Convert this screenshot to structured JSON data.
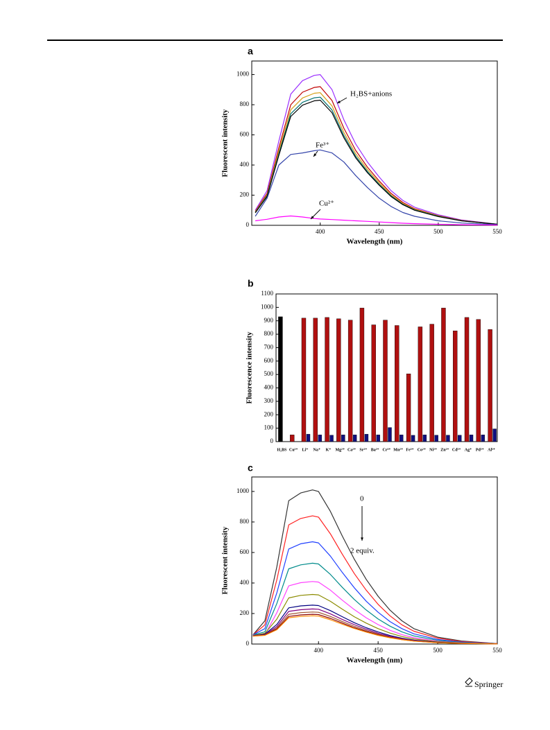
{
  "footer": {
    "publisher": "Springer"
  },
  "chart_data": [
    {
      "type": "line",
      "panel_label": "a",
      "xlabel": "Wavelength (nm)",
      "ylabel": "Fluorescent intensity",
      "xlim": [
        342,
        550
      ],
      "ylim": [
        0,
        1090
      ],
      "xticks": [
        400,
        450,
        500,
        550
      ],
      "yticks": [
        0,
        200,
        400,
        600,
        800,
        1000
      ],
      "x": [
        345,
        355,
        365,
        375,
        385,
        395,
        400,
        410,
        420,
        430,
        440,
        450,
        460,
        470,
        480,
        500,
        520,
        550
      ],
      "annotations": [
        "H₂BS+anions",
        "Fe³⁺",
        "Cu²⁺"
      ],
      "series": [
        {
          "color": "#9b30ff",
          "values": [
            100,
            230,
            560,
            870,
            960,
            995,
            1000,
            900,
            700,
            540,
            420,
            320,
            230,
            165,
            120,
            70,
            35,
            8
          ]
        },
        {
          "color": "#c00000",
          "values": [
            92,
            212,
            515,
            800,
            883,
            915,
            920,
            828,
            644,
            497,
            386,
            294,
            212,
            152,
            110,
            64,
            32,
            7
          ]
        },
        {
          "color": "#d4a017",
          "values": [
            88,
            202,
            493,
            766,
            845,
            876,
            880,
            792,
            616,
            475,
            370,
            282,
            202,
            145,
            106,
            62,
            31,
            7
          ]
        },
        {
          "color": "#007070",
          "values": [
            85,
            196,
            476,
            740,
            816,
            846,
            850,
            765,
            595,
            459,
            357,
            272,
            196,
            140,
            102,
            60,
            30,
            7
          ]
        },
        {
          "color": "#000000",
          "values": [
            83,
            191,
            465,
            722,
            797,
            826,
            830,
            747,
            581,
            448,
            349,
            266,
            191,
            137,
            100,
            58,
            29,
            7
          ]
        },
        {
          "color": "#3344aa",
          "values": [
            60,
            180,
            400,
            470,
            480,
            495,
            500,
            480,
            420,
            330,
            250,
            180,
            125,
            85,
            60,
            30,
            15,
            4
          ]
        },
        {
          "color": "#ff00ff",
          "values": [
            30,
            40,
            55,
            62,
            55,
            45,
            42,
            38,
            34,
            30,
            26,
            22,
            18,
            14,
            11,
            7,
            4,
            2
          ]
        }
      ]
    },
    {
      "type": "bar",
      "panel_label": "b",
      "ylabel": "Fluorescence intensity",
      "ylim": [
        0,
        1100
      ],
      "yticks": [
        0,
        100,
        200,
        300,
        400,
        500,
        600,
        700,
        800,
        900,
        1000,
        1100
      ],
      "categories": [
        "H₂BS",
        "Cu²⁺",
        "Li⁺",
        "Na⁺",
        "K⁺",
        "Mg²⁺",
        "Ca²⁺",
        "Sr²⁺",
        "Ba²⁺",
        "Cr³⁺",
        "Mn²⁺",
        "Fe³⁺",
        "Co²⁺",
        "Ni²⁺",
        "Zn²⁺",
        "Cd²⁺",
        "Ag⁺",
        "Pd²⁺",
        "Al³⁺"
      ],
      "first_bar_color": "#000000",
      "series": [
        {
          "color": "#b01010",
          "values": [
            930,
            50,
            920,
            920,
            925,
            915,
            905,
            995,
            870,
            905,
            865,
            505,
            855,
            875,
            995,
            825,
            925,
            910,
            835
          ]
        },
        {
          "color": "#101080",
          "values": [
            null,
            null,
            55,
            50,
            48,
            50,
            50,
            55,
            50,
            105,
            50,
            47,
            50,
            48,
            48,
            48,
            50,
            50,
            95
          ]
        }
      ]
    },
    {
      "type": "line",
      "panel_label": "c",
      "xlabel": "Wavelength (nm)",
      "ylabel": "Fluorescent intensity",
      "xlim": [
        344,
        550
      ],
      "ylim": [
        0,
        1095
      ],
      "xticks": [
        400,
        450,
        500,
        550
      ],
      "yticks": [
        0,
        200,
        400,
        600,
        800,
        1000
      ],
      "x": [
        345,
        355,
        365,
        375,
        385,
        395,
        400,
        410,
        420,
        430,
        440,
        450,
        460,
        470,
        480,
        500,
        520,
        550
      ],
      "annotations": [
        "0",
        "2 equiv."
      ],
      "series": [
        {
          "color": "#333333",
          "values": [
            60,
            152,
            505,
            939,
            990,
            1010,
            1000,
            869,
            707,
            556,
            424,
            313,
            222,
            152,
            101,
            45,
            20,
            3
          ]
        },
        {
          "color": "#ff2020",
          "values": [
            60,
            126,
            420,
            781,
            823,
            840,
            832,
            722,
            588,
            462,
            353,
            260,
            185,
            126,
            84,
            38,
            17,
            3
          ]
        },
        {
          "color": "#2040ff",
          "values": [
            60,
            101,
            335,
            623,
            657,
            670,
            663,
            576,
            469,
            369,
            281,
            208,
            147,
            101,
            67,
            30,
            13,
            2
          ]
        },
        {
          "color": "#008b8b",
          "values": [
            60,
            80,
            265,
            493,
            519,
            530,
            525,
            456,
            371,
            292,
            223,
            164,
            117,
            80,
            53,
            24,
            11,
            2
          ]
        },
        {
          "color": "#ff40ff",
          "values": [
            58,
            62,
            205,
            381,
            402,
            410,
            406,
            353,
            287,
            226,
            172,
            127,
            90,
            62,
            41,
            18,
            8,
            1
          ]
        },
        {
          "color": "#8b8b00",
          "values": [
            56,
            70,
            163,
            302,
            319,
            325,
            322,
            280,
            228,
            179,
            137,
            101,
            72,
            49,
            33,
            15,
            7,
            1
          ]
        },
        {
          "color": "#000080",
          "values": [
            55,
            65,
            128,
            237,
            250,
            255,
            252,
            219,
            179,
            140,
            107,
            79,
            56,
            38,
            26,
            11,
            5,
            1
          ]
        },
        {
          "color": "#800080",
          "values": [
            54,
            62,
            115,
            214,
            225,
            230,
            228,
            198,
            161,
            127,
            97,
            71,
            51,
            35,
            23,
            10,
            5,
            1
          ]
        },
        {
          "color": "#a0522d",
          "values": [
            53,
            60,
            105,
            195,
            206,
            210,
            208,
            181,
            147,
            116,
            88,
            65,
            46,
            32,
            21,
            9,
            4,
            1
          ]
        },
        {
          "color": "#8b0000",
          "values": [
            52,
            58,
            98,
            181,
            191,
            195,
            193,
            168,
            137,
            107,
            82,
            60,
            43,
            29,
            20,
            9,
            4,
            1
          ]
        },
        {
          "color": "#ff8c00",
          "values": [
            52,
            57,
            93,
            172,
            181,
            185,
            183,
            159,
            130,
            102,
            78,
            57,
            41,
            28,
            19,
            8,
            4,
            1
          ]
        }
      ]
    }
  ]
}
